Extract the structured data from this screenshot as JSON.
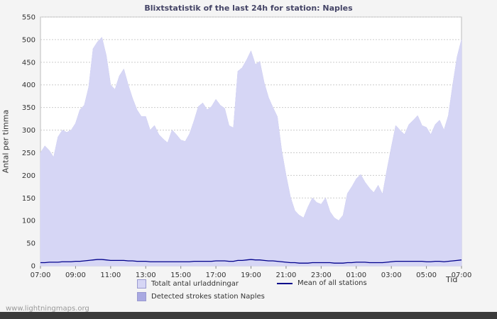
{
  "watermark": "www.lightningmaps.org",
  "chart_data": {
    "type": "area",
    "title": "Blixtstatistik of the last 24h for station: Naples",
    "xlabel": "Tid",
    "ylabel": "Antal per timma",
    "ylim": [
      0,
      550
    ],
    "y_tick_step": 50,
    "grid": "horizontal-dashed",
    "legend_position": "bottom",
    "x_tick_labels": [
      "07:00",
      "09:00",
      "11:00",
      "13:00",
      "15:00",
      "17:00",
      "19:00",
      "21:00",
      "23:00",
      "01:00",
      "03:00",
      "05:00",
      "07:00"
    ],
    "x_interval_minutes": 15,
    "series": [
      {
        "name": "Totalt antal urladdningar",
        "type": "area",
        "color": "#d6d6f5",
        "values": [
          250,
          265,
          255,
          240,
          285,
          300,
          295,
          300,
          315,
          345,
          355,
          395,
          480,
          495,
          505,
          465,
          400,
          390,
          420,
          435,
          400,
          370,
          345,
          330,
          330,
          300,
          310,
          290,
          280,
          272,
          300,
          290,
          278,
          275,
          292,
          320,
          352,
          360,
          345,
          352,
          368,
          355,
          348,
          310,
          305,
          430,
          438,
          455,
          475,
          445,
          452,
          405,
          372,
          350,
          330,
          255,
          200,
          152,
          122,
          112,
          106,
          130,
          150,
          140,
          136,
          150,
          120,
          106,
          100,
          112,
          160,
          175,
          192,
          202,
          185,
          172,
          162,
          178,
          158,
          212,
          262,
          310,
          300,
          290,
          312,
          322,
          332,
          310,
          306,
          290,
          312,
          322,
          300,
          332,
          400,
          462,
          500
        ]
      },
      {
        "name": "Detected strokes station Naples",
        "type": "area",
        "color": "#a9a9e2",
        "values": [
          250,
          265,
          255,
          240,
          285,
          300,
          295,
          300,
          315,
          345,
          355,
          395,
          480,
          495,
          505,
          465,
          400,
          390,
          420,
          435,
          400,
          370,
          345,
          330,
          330,
          300,
          310,
          290,
          280,
          272,
          300,
          290,
          278,
          275,
          292,
          320,
          352,
          360,
          345,
          352,
          368,
          355,
          348,
          310,
          305,
          430,
          438,
          455,
          475,
          445,
          452,
          405,
          372,
          350,
          330,
          255,
          200,
          152,
          122,
          112,
          106,
          130,
          150,
          140,
          136,
          150,
          120,
          106,
          100,
          112,
          160,
          175,
          192,
          202,
          185,
          172,
          162,
          178,
          158,
          212,
          262,
          310,
          300,
          290,
          312,
          322,
          332,
          310,
          306,
          290,
          312,
          322,
          300,
          332,
          400,
          462,
          500
        ]
      },
      {
        "name": "Mean of all stations",
        "type": "line",
        "color": "#00008b",
        "values": [
          7,
          7,
          8,
          8,
          8,
          9,
          9,
          9,
          10,
          10,
          11,
          12,
          13,
          14,
          14,
          13,
          12,
          12,
          12,
          12,
          11,
          11,
          10,
          10,
          10,
          9,
          9,
          9,
          9,
          9,
          9,
          9,
          9,
          9,
          9,
          10,
          10,
          10,
          10,
          10,
          11,
          11,
          11,
          10,
          10,
          12,
          12,
          13,
          14,
          13,
          13,
          12,
          11,
          11,
          10,
          9,
          8,
          7,
          7,
          6,
          6,
          6,
          7,
          7,
          7,
          7,
          7,
          6,
          6,
          6,
          7,
          7,
          8,
          8,
          8,
          7,
          7,
          7,
          7,
          8,
          9,
          10,
          10,
          10,
          10,
          10,
          10,
          10,
          9,
          9,
          10,
          10,
          9,
          10,
          11,
          12,
          13
        ]
      }
    ]
  }
}
